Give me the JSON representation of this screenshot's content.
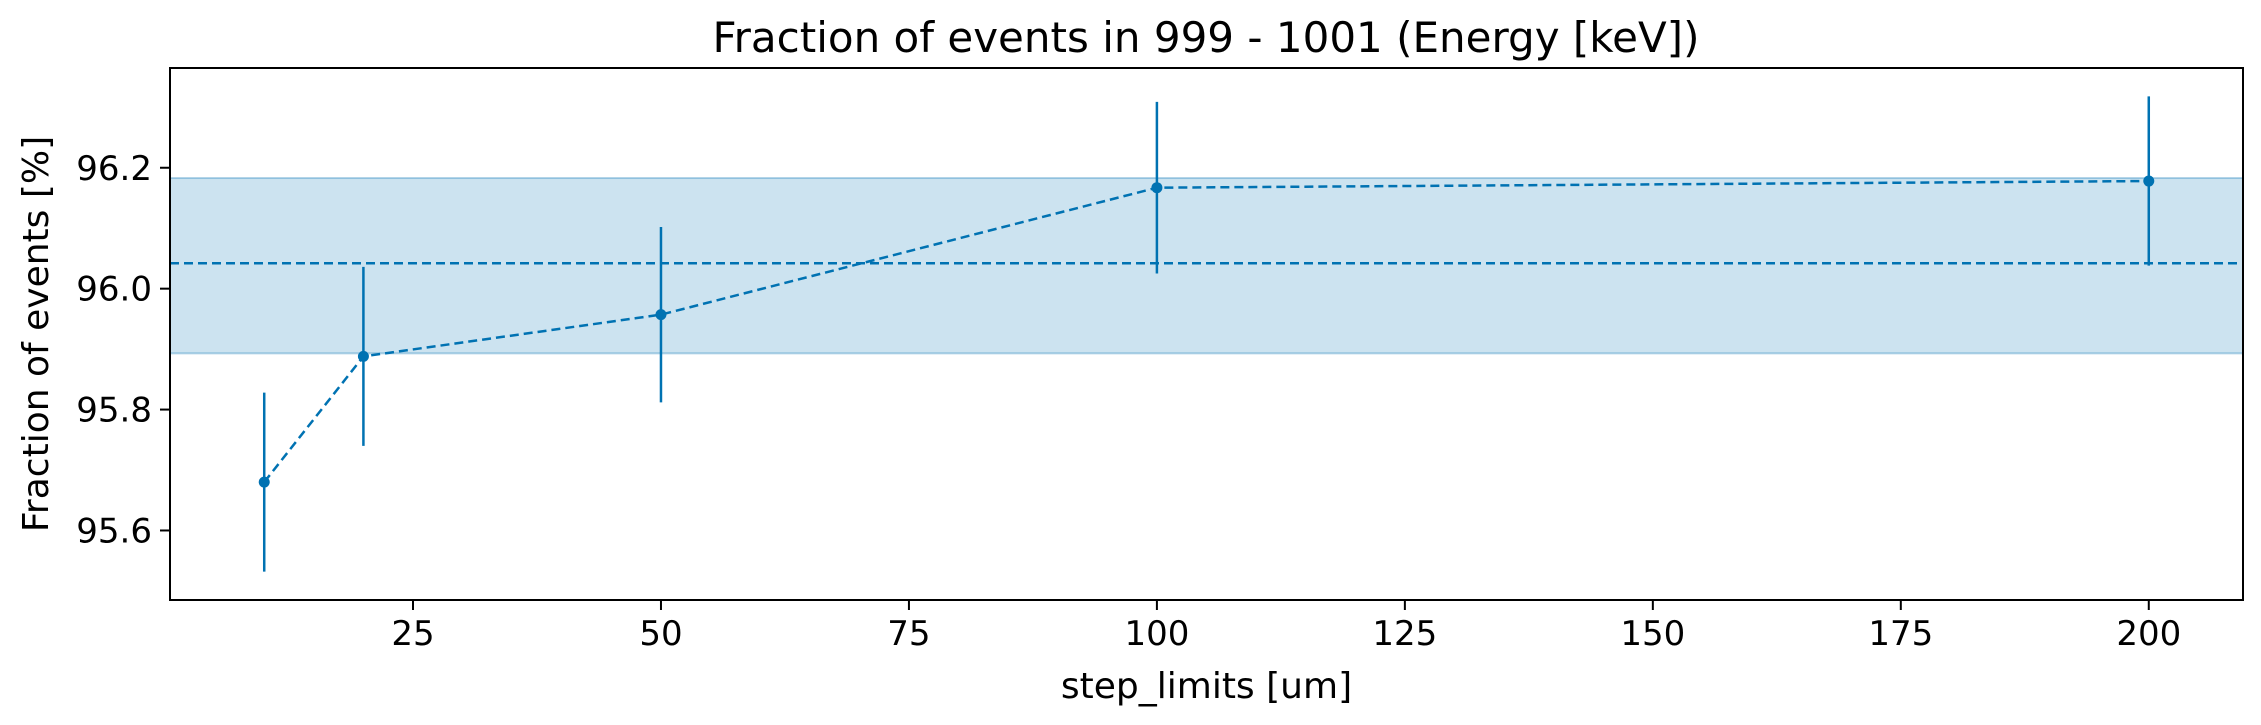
{
  "chart_data": {
    "type": "scatter",
    "title": "Fraction of events in 999 - 1001 (Energy [keV])",
    "xlabel": "step_limits [um]",
    "ylabel": "Fraction of events [%]",
    "xlim": [
      0.5,
      209.5
    ],
    "ylim": [
      95.485,
      96.365
    ],
    "xticks": [
      25,
      50,
      75,
      100,
      125,
      150,
      175,
      200
    ],
    "xtick_labels": [
      "25",
      "50",
      "75",
      "100",
      "125",
      "150",
      "175",
      "200"
    ],
    "yticks": [
      95.6,
      95.8,
      96.0,
      96.2
    ],
    "ytick_labels": [
      "95.6",
      "95.8",
      "96.0",
      "96.2"
    ],
    "grid": false,
    "series": [
      {
        "x": [
          10,
          20,
          50,
          100,
          200
        ],
        "y": [
          95.68,
          95.888,
          95.957,
          96.167,
          96.178
        ],
        "yerr": [
          0.148,
          0.148,
          0.145,
          0.142,
          0.14
        ],
        "line_style": "dashed",
        "marker": "circle",
        "color": "#0072b2"
      }
    ],
    "mean_line": {
      "y": 96.042,
      "line_style": "dashed",
      "color": "#0072b2"
    },
    "band": {
      "y_low": 95.893,
      "y_high": 96.183,
      "color": "#0072b2",
      "opacity": 0.2
    }
  }
}
